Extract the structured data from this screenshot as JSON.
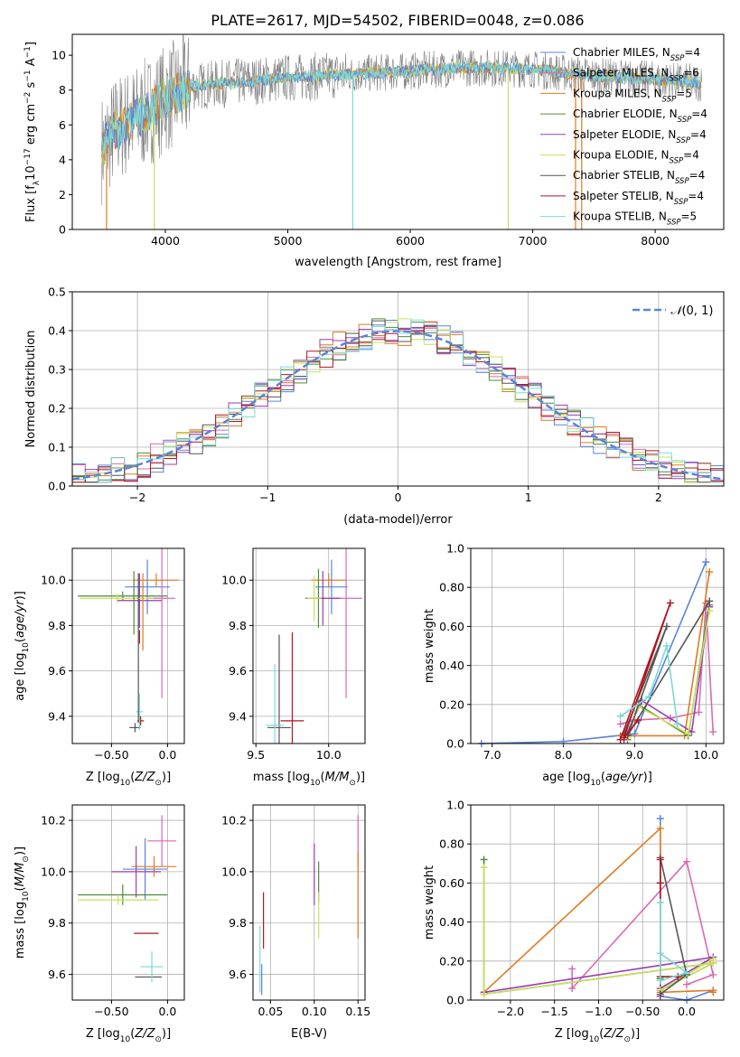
{
  "figure_title": "PLATE=2617, MJD=54502, FIBERID=0048, z=0.086",
  "series": [
    {
      "name": "Chabrier MILES",
      "legend_label": "Chabrier MILES, N",
      "nssp": "=4",
      "color": "#5b83d9"
    },
    {
      "name": "Salpeter MILES",
      "legend_label": "Salpeter MILES, N",
      "nssp": "=6",
      "color": "#d96ab0"
    },
    {
      "name": "Kroupa MILES",
      "legend_label": "Kroupa MILES, N",
      "nssp": "=5",
      "color": "#e07a22"
    },
    {
      "name": "Chabrier ELODIE",
      "legend_label": "Chabrier ELODIE, N",
      "nssp": "=4",
      "color": "#4f8a3a"
    },
    {
      "name": "Salpeter ELODIE",
      "legend_label": "Salpeter ELODIE, N",
      "nssp": "=4",
      "color": "#9a3db0"
    },
    {
      "name": "Kroupa ELODIE",
      "legend_label": "Kroupa ELODIE, N",
      "nssp": "=4",
      "color": "#c9e05a"
    },
    {
      "name": "Chabrier STELIB",
      "legend_label": "Chabrier STELIB, N",
      "nssp": "=4",
      "color": "#555555"
    },
    {
      "name": "Salpeter STELIB",
      "legend_label": "Salpeter STELIB, N",
      "nssp": "=4",
      "color": "#b3141e"
    },
    {
      "name": "Kroupa STELIB",
      "legend_label": "Kroupa STELIB, N",
      "nssp": "=5",
      "color": "#7dd8d8"
    }
  ],
  "legend_sub": "SSP",
  "chart_data": [
    {
      "id": "spectrum",
      "type": "line",
      "title": "PLATE=2617, MJD=54502, FIBERID=0048, z=0.086",
      "xlabel": "wavelength [Angstrom, rest frame]",
      "ylabel": "Flux [f",
      "xlim": [
        3240,
        8560
      ],
      "ylim": [
        0,
        11.2
      ],
      "xticks": [
        "4000",
        "5000",
        "6000",
        "7000",
        "8000"
      ],
      "yticks": [
        "0",
        "2",
        "4",
        "6",
        "8",
        "10"
      ],
      "grid": false,
      "legend": "right",
      "data_color": "#808080",
      "model_envelope": {
        "x": [
          3480,
          3600,
          3800,
          4000,
          4200,
          4500,
          5000,
          5500,
          6000,
          6500,
          7000,
          7500,
          8000,
          8380
        ],
        "y": [
          4.6,
          5.8,
          6.5,
          7.5,
          8.2,
          8.4,
          8.7,
          8.9,
          9.1,
          9.3,
          9.2,
          8.8,
          8.6,
          8.4
        ]
      },
      "sharp_features": [
        {
          "x": 3520,
          "y": 0.0
        },
        {
          "x": 3910,
          "y": 0.0
        },
        {
          "x": 5530,
          "y": 0.0
        },
        {
          "x": 6800,
          "y": 0.0
        },
        {
          "x": 7350,
          "y": 0.0
        },
        {
          "x": 7400,
          "y": 0.0
        }
      ]
    },
    {
      "id": "residuals",
      "type": "histogram",
      "xlabel": "(data-model)/error",
      "ylabel": "Normed distribution",
      "xlim": [
        -2.5,
        2.5
      ],
      "ylim": [
        0,
        0.5
      ],
      "xticks": [
        "−2",
        "−1",
        "0",
        "1",
        "2"
      ],
      "yticks": [
        "0.0",
        "0.1",
        "0.2",
        "0.3",
        "0.4",
        "0.5"
      ],
      "grid": true,
      "bin_width": 0.1,
      "gaussian_label": "N(0,1)",
      "gaussian_color": "#5b83d9"
    },
    {
      "id": "Z-age",
      "type": "errorbar",
      "xlabel": "Z [log10(Z/Z⊙)]",
      "ylabel": "age  [log10(age/yr)]",
      "xlim": [
        -0.85,
        0.15
      ],
      "ylim": [
        9.28,
        10.14
      ],
      "xticks": [
        -0.5,
        0.0
      ],
      "yticks": [
        9.4,
        9.6,
        9.8,
        10.0
      ],
      "grid": true,
      "points": [
        {
          "s": 0,
          "x": -0.18,
          "y": 9.97,
          "xerr": 0.2,
          "yerr": 0.12
        },
        {
          "s": 1,
          "x": -0.05,
          "y": 9.92,
          "xerr": 0.12,
          "yerr": 0.44
        },
        {
          "s": 2,
          "x": -0.1,
          "y": 10.0,
          "xerr": 0.2,
          "yerr": 0.03
        },
        {
          "s": 3,
          "x": -0.4,
          "y": 9.93,
          "xerr": 0.4,
          "yerr": 0.02
        },
        {
          "s": 4,
          "x": -0.25,
          "y": 9.91,
          "xerr": 0.2,
          "yerr": 0.12
        },
        {
          "s": 5,
          "x": -0.45,
          "y": 9.92,
          "xerr": 0.33,
          "yerr": 0.02
        },
        {
          "s": 6,
          "x": -0.29,
          "y": 9.35,
          "xerr": 0.05,
          "yerr": 0.02
        },
        {
          "s": 7,
          "x": -0.24,
          "y": 9.38,
          "xerr": 0.03,
          "yerr": 0.02
        },
        {
          "s": 8,
          "x": -0.25,
          "y": 9.42,
          "xerr": 0.03,
          "yerr": 0.08
        },
        {
          "s": 7,
          "x": -0.25,
          "y": 9.75,
          "xerr": 0.0,
          "yerr": 0.03
        },
        {
          "s": 2,
          "x": -0.22,
          "y": 9.86,
          "xerr": 0.0,
          "yerr": 0.17
        },
        {
          "s": 3,
          "x": -0.3,
          "y": 9.9,
          "xerr": 0.0,
          "yerr": 0.14
        },
        {
          "s": 6,
          "x": -0.26,
          "y": 9.7,
          "xerr": 0.0,
          "yerr": 0.33
        }
      ]
    },
    {
      "id": "mass-age",
      "type": "errorbar",
      "xlabel": "mass [log10(M/M⊙)]",
      "xlim": [
        9.48,
        10.25
      ],
      "ylim": [
        9.28,
        10.14
      ],
      "xticks": [
        9.5,
        10.0
      ],
      "yticks": [
        9.4,
        9.6,
        9.8,
        10.0
      ],
      "grid": true,
      "points": [
        {
          "s": 0,
          "x": 10.02,
          "y": 9.97,
          "xerr": 0.11,
          "yerr": 0.12
        },
        {
          "s": 1,
          "x": 10.12,
          "y": 9.92,
          "xerr": 0.11,
          "yerr": 0.44
        },
        {
          "s": 2,
          "x": 10.0,
          "y": 10.0,
          "xerr": 0.12,
          "yerr": 0.03
        },
        {
          "s": 3,
          "x": 9.93,
          "y": 9.92,
          "xerr": 0.05,
          "yerr": 0.13
        },
        {
          "s": 4,
          "x": 9.96,
          "y": 9.92,
          "xerr": 0.12,
          "yerr": 0.12
        },
        {
          "s": 5,
          "x": 9.9,
          "y": 9.92,
          "xerr": 0.05,
          "yerr": 0.1
        },
        {
          "s": 6,
          "x": 9.66,
          "y": 9.35,
          "xerr": 0.08,
          "yerr": 0.41
        },
        {
          "s": 7,
          "x": 9.75,
          "y": 9.38,
          "xerr": 0.08,
          "yerr": 0.39
        },
        {
          "s": 8,
          "x": 9.63,
          "y": 9.36,
          "xerr": 0.06,
          "yerr": 0.27
        }
      ]
    },
    {
      "id": "age-weight",
      "type": "line",
      "xlabel": "age  [log10(age/yr)]",
      "ylabel": "mass weight",
      "xlim": [
        6.7,
        10.25
      ],
      "ylim": [
        0,
        1.0
      ],
      "xticks": [
        7,
        8,
        9,
        10
      ],
      "yticks": [
        0.0,
        0.2,
        0.4,
        0.6,
        0.8,
        1.0
      ],
      "grid": true,
      "series": [
        {
          "s": 0,
          "x": [
            6.85,
            8.0,
            9.0,
            10.0
          ],
          "y": [
            0.0,
            0.01,
            0.05,
            0.93
          ]
        },
        {
          "s": 1,
          "x": [
            8.8,
            9.0,
            9.5,
            9.9,
            10.0,
            10.1
          ],
          "y": [
            0.1,
            0.12,
            0.13,
            0.16,
            0.72,
            0.06
          ]
        },
        {
          "s": 2,
          "x": [
            8.8,
            9.7,
            10.05
          ],
          "y": [
            0.04,
            0.04,
            0.88
          ]
        },
        {
          "s": 3,
          "x": [
            8.9,
            9.05,
            9.75,
            10.05
          ],
          "y": [
            0.02,
            0.2,
            0.04,
            0.71
          ]
        },
        {
          "s": 4,
          "x": [
            8.85,
            9.1,
            9.8,
            10.05
          ],
          "y": [
            0.02,
            0.22,
            0.06,
            0.7
          ]
        },
        {
          "s": 5,
          "x": [
            8.9,
            9.05,
            9.75,
            10.05
          ],
          "y": [
            0.03,
            0.19,
            0.05,
            0.68
          ]
        },
        {
          "s": 6,
          "x": [
            8.85,
            9.45,
            8.9,
            10.05
          ],
          "y": [
            0.05,
            0.6,
            0.04,
            0.73
          ]
        },
        {
          "s": 7,
          "x": [
            8.8,
            9.5,
            8.85,
            9.05
          ],
          "y": [
            0.02,
            0.72,
            0.03,
            0.12
          ]
        },
        {
          "s": 8,
          "x": [
            8.8,
            9.2,
            9.45,
            9.6
          ],
          "y": [
            0.14,
            0.24,
            0.5,
            0.1
          ]
        }
      ]
    },
    {
      "id": "Z-mass",
      "type": "errorbar",
      "xlabel": "Z [log10(Z/Z⊙)]",
      "ylabel": "mass [log10(M/M⊙)]",
      "xlim": [
        -0.85,
        0.15
      ],
      "ylim": [
        9.5,
        10.26
      ],
      "xticks": [
        -0.5,
        0.0
      ],
      "yticks": [
        9.6,
        9.8,
        10.0,
        10.2
      ],
      "grid": true,
      "points": [
        {
          "s": 0,
          "x": -0.2,
          "y": 10.01,
          "xerr": 0.2,
          "yerr": 0.12
        },
        {
          "s": 1,
          "x": -0.05,
          "y": 10.12,
          "xerr": 0.13,
          "yerr": 0.1
        },
        {
          "s": 2,
          "x": -0.12,
          "y": 10.02,
          "xerr": 0.2,
          "yerr": 0.04
        },
        {
          "s": 3,
          "x": -0.4,
          "y": 9.91,
          "xerr": 0.4,
          "yerr": 0.04
        },
        {
          "s": 4,
          "x": -0.28,
          "y": 10.0,
          "xerr": 0.22,
          "yerr": 0.1
        },
        {
          "s": 5,
          "x": -0.44,
          "y": 9.89,
          "xerr": 0.36,
          "yerr": 0.02
        },
        {
          "s": 6,
          "x": -0.17,
          "y": 9.59,
          "xerr": 0.12,
          "yerr": 0.0
        },
        {
          "s": 7,
          "x": -0.19,
          "y": 9.76,
          "xerr": 0.11,
          "yerr": 0.0
        },
        {
          "s": 8,
          "x": -0.14,
          "y": 9.63,
          "xerr": 0.1,
          "yerr": 0.06
        }
      ]
    },
    {
      "id": "ebv-mass",
      "type": "errorbar",
      "xlabel": "E(B-V)",
      "xlim": [
        0.03,
        0.158
      ],
      "ylim": [
        9.5,
        10.26
      ],
      "xticks": [
        0.05,
        0.1,
        0.15
      ],
      "yticks": [
        9.6,
        9.8,
        10.0,
        10.2
      ],
      "grid": true,
      "points": [
        {
          "s": 1,
          "x": 0.15,
          "y": 10.12,
          "xerr": 0.0,
          "yerr": 0.1
        },
        {
          "s": 2,
          "x": 0.15,
          "y": 9.91,
          "xerr": 0.0,
          "yerr": 0.17
        },
        {
          "s": 3,
          "x": 0.105,
          "y": 9.96,
          "xerr": 0.0,
          "yerr": 0.08
        },
        {
          "s": 4,
          "x": 0.1,
          "y": 9.99,
          "xerr": 0.0,
          "yerr": 0.12
        },
        {
          "s": 5,
          "x": 0.105,
          "y": 9.83,
          "xerr": 0.0,
          "yerr": 0.09
        },
        {
          "s": 7,
          "x": 0.042,
          "y": 9.81,
          "xerr": 0.0,
          "yerr": 0.11
        },
        {
          "s": 8,
          "x": 0.038,
          "y": 9.66,
          "xerr": 0.0,
          "yerr": 0.13
        },
        {
          "s": 0,
          "x": 0.04,
          "y": 9.58,
          "xerr": 0.0,
          "yerr": 0.06
        }
      ]
    },
    {
      "id": "Z-weight",
      "type": "line",
      "xlabel": "Z [log10(Z/Z⊙)]",
      "ylabel": "mass weight",
      "xlim": [
        -2.45,
        0.42
      ],
      "ylim": [
        0,
        1.0
      ],
      "xticks": [
        -2.0,
        -1.5,
        -1.0,
        -0.5,
        0.0
      ],
      "yticks": [
        0.0,
        0.2,
        0.4,
        0.6,
        0.8,
        1.0
      ],
      "grid": true,
      "series": [
        {
          "s": 0,
          "x": [
            -0.3,
            -0.3,
            0.0,
            0.3
          ],
          "y": [
            0.93,
            0.02,
            0.0,
            0.05
          ]
        },
        {
          "s": 1,
          "x": [
            -1.3,
            -1.3,
            0.0,
            0.3,
            0.0
          ],
          "y": [
            0.16,
            0.06,
            0.71,
            0.13,
            0.08
          ]
        },
        {
          "s": 2,
          "x": [
            -2.3,
            -0.3,
            -0.3,
            0.3,
            0.3
          ],
          "y": [
            0.04,
            0.88,
            0.04,
            0.05,
            0.04
          ]
        },
        {
          "s": 3,
          "x": [
            -2.3,
            -2.3,
            0.3,
            -0.3,
            -0.3
          ],
          "y": [
            0.72,
            0.03,
            0.19,
            0.05,
            0.11
          ]
        },
        {
          "s": 4,
          "x": [
            -2.3,
            0.3,
            -0.3,
            -0.3
          ],
          "y": [
            0.04,
            0.22,
            0.06,
            0.02
          ]
        },
        {
          "s": 5,
          "x": [
            -2.3,
            -2.3,
            0.3,
            -0.3,
            0.3
          ],
          "y": [
            0.68,
            0.03,
            0.19,
            0.05,
            0.21
          ]
        },
        {
          "s": 6,
          "x": [
            -0.3,
            -0.3,
            0.0,
            -0.3
          ],
          "y": [
            0.6,
            0.73,
            0.13,
            0.03
          ]
        },
        {
          "s": 7,
          "x": [
            -0.3,
            -0.3,
            -0.3,
            -0.1
          ],
          "y": [
            0.72,
            0.6,
            0.12,
            0.12
          ]
        },
        {
          "s": 8,
          "x": [
            -0.3,
            -0.3,
            0.0,
            -0.3
          ],
          "y": [
            0.5,
            0.1,
            0.14,
            0.24
          ]
        }
      ]
    }
  ]
}
